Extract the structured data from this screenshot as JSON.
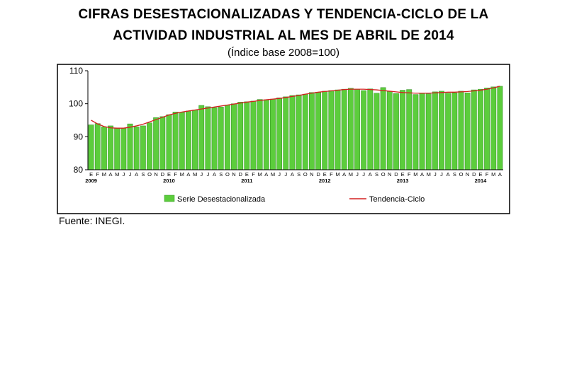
{
  "title_line1": "CIFRAS DESESTACIONALIZADAS Y TENDENCIA-CICLO DE LA",
  "title_line2": "ACTIVIDAD INDUSTRIAL AL MES DE ABRIL DE 2014",
  "subtitle": "(Índice base 2008=100)",
  "source": "Fuente: INEGI.",
  "colors": {
    "bar_fill": "#5ccd3c",
    "bar_stroke": "#2e8f1e",
    "trend_line": "#d42020",
    "frame": "#000000"
  },
  "chart_data": {
    "type": "bar",
    "ylim": [
      80,
      110
    ],
    "yticks": [
      80,
      90,
      100,
      110
    ],
    "grid": false,
    "legend_position": "bottom",
    "month_labels": [
      "E",
      "F",
      "M",
      "A",
      "M",
      "J",
      "J",
      "A",
      "S",
      "O",
      "N",
      "D",
      "E",
      "F",
      "M",
      "A",
      "M",
      "J",
      "J",
      "A",
      "S",
      "O",
      "N",
      "D",
      "E",
      "F",
      "M",
      "A",
      "M",
      "J",
      "J",
      "A",
      "S",
      "O",
      "N",
      "D",
      "E",
      "F",
      "M",
      "A",
      "M",
      "J",
      "J",
      "A",
      "S",
      "O",
      "N",
      "D",
      "E",
      "F",
      "M",
      "A",
      "M",
      "J",
      "J",
      "A",
      "S",
      "O",
      "N",
      "D",
      "E",
      "F",
      "M",
      "A"
    ],
    "year_labels": [
      {
        "index": 0,
        "label": "2009"
      },
      {
        "index": 12,
        "label": "2010"
      },
      {
        "index": 24,
        "label": "2011"
      },
      {
        "index": 36,
        "label": "2012"
      },
      {
        "index": 48,
        "label": "2013"
      },
      {
        "index": 60,
        "label": "2014"
      }
    ],
    "series": [
      {
        "name": "Serie Desestacionalizada",
        "kind": "bar",
        "values": [
          93.6,
          94.0,
          93.0,
          93.3,
          92.7,
          92.6,
          93.9,
          93.0,
          93.3,
          94.2,
          95.8,
          96.1,
          96.7,
          97.5,
          97.4,
          97.8,
          98.1,
          99.5,
          99.1,
          98.8,
          99.0,
          99.6,
          100.0,
          100.5,
          100.6,
          100.8,
          101.3,
          101.2,
          101.4,
          101.8,
          102.1,
          102.5,
          102.7,
          102.9,
          103.4,
          103.5,
          103.8,
          104.0,
          104.2,
          104.4,
          104.7,
          104.4,
          104.0,
          104.5,
          103.2,
          104.9,
          103.7,
          103.1,
          104.1,
          104.3,
          102.8,
          103.1,
          103.0,
          103.6,
          103.8,
          103.2,
          103.3,
          103.8,
          103.3,
          104.2,
          104.4,
          104.8,
          105.1,
          105.3
        ]
      },
      {
        "name": "Tendencia-Ciclo",
        "kind": "line",
        "values": [
          95.0,
          93.9,
          93.1,
          92.7,
          92.6,
          92.6,
          92.9,
          93.3,
          93.8,
          94.5,
          95.2,
          95.9,
          96.6,
          97.1,
          97.5,
          97.8,
          98.1,
          98.4,
          98.7,
          99.0,
          99.3,
          99.6,
          99.9,
          100.2,
          100.5,
          100.7,
          101.0,
          101.2,
          101.4,
          101.6,
          101.9,
          102.2,
          102.5,
          102.9,
          103.2,
          103.5,
          103.7,
          103.9,
          104.1,
          104.3,
          104.4,
          104.4,
          104.4,
          104.3,
          104.2,
          104.0,
          103.8,
          103.6,
          103.4,
          103.3,
          103.2,
          103.2,
          103.2,
          103.3,
          103.4,
          103.5,
          103.5,
          103.6,
          103.7,
          103.9,
          104.1,
          104.4,
          104.8,
          105.3
        ]
      }
    ]
  }
}
